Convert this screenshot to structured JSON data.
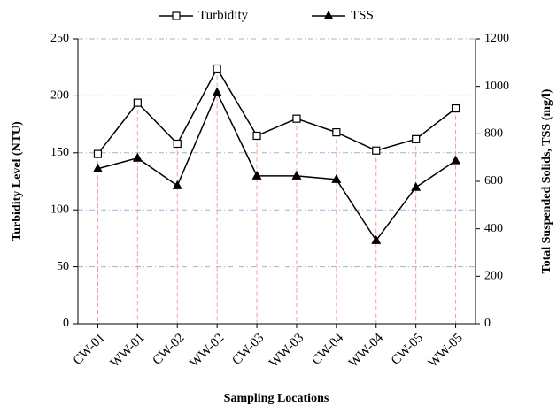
{
  "chart_data": {
    "type": "line",
    "x_label": "Sampling Locations",
    "y_label": "Turbidity Level (NTU)",
    "y2_label": "Total Suspended Solids, TSS (mg/l)",
    "categories": [
      "CW-01",
      "WW-01",
      "CW-02",
      "WW-02",
      "CW-03",
      "WW-03",
      "CW-04",
      "WW-04",
      "CW-05",
      "WW-05"
    ],
    "series": [
      {
        "name": "Turbidity",
        "color": "#000000",
        "marker": "square",
        "values": [
          149,
          194,
          158,
          224,
          165,
          180,
          168,
          152,
          162,
          189
        ]
      },
      {
        "name": "TSS",
        "color": "#000000",
        "marker": "triangle",
        "axis": "y2",
        "values": [
          653,
          698,
          582,
          974,
          623,
          623,
          608,
          351,
          575,
          687
        ]
      }
    ],
    "ylim": [
      0,
      250
    ],
    "yticks": [
      0,
      50,
      100,
      150,
      200,
      250
    ],
    "y2lim": [
      0,
      1200
    ],
    "y2ticks": [
      0,
      200,
      400,
      600,
      800,
      1000,
      1200
    ],
    "grid": true,
    "drop_lines": true,
    "legend": "top"
  }
}
